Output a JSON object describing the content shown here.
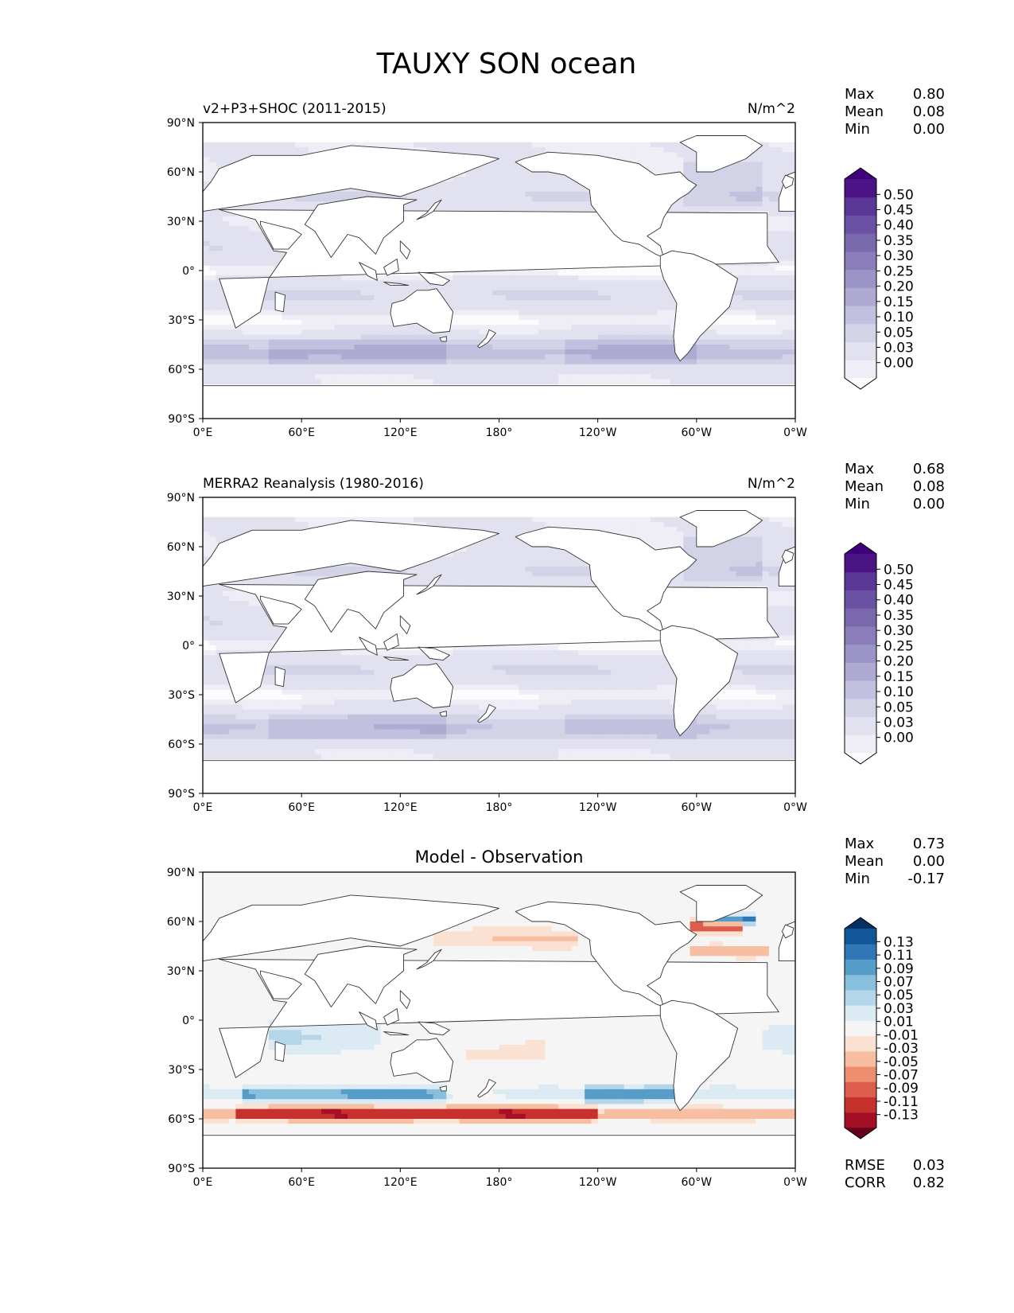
{
  "title": "TAUXY SON ocean",
  "colors": {
    "purple_scale": [
      "#fcfbfd",
      "#efedf5",
      "#e2e1ef",
      "#d3d3e8",
      "#c1c1df",
      "#aeaad1",
      "#9b94c6",
      "#8a7db9",
      "#7a68ad",
      "#6a51a3",
      "#5b3798",
      "#4a1486",
      "#3f007d"
    ],
    "diff_scale": [
      "#67001f",
      "#a50f26",
      "#c6312e",
      "#dc5d4b",
      "#ee8e6f",
      "#f8bea1",
      "#fbe1d2",
      "#f5f5f5",
      "#dbeaf3",
      "#b5d6e9",
      "#88bfdc",
      "#569dc9",
      "#3078b5",
      "#12569a",
      "#053061"
    ]
  },
  "chart_data": [
    {
      "type": "heatmap",
      "title": "v2+P3+SHOC (2011-2015)",
      "units": "N/m^2",
      "stats": [
        {
          "label": "Max",
          "value": "0.80"
        },
        {
          "label": "Mean",
          "value": "0.08"
        },
        {
          "label": "Min",
          "value": "0.00"
        }
      ],
      "colorbar_ticks": [
        "0.50",
        "0.45",
        "0.40",
        "0.35",
        "0.30",
        "0.25",
        "0.20",
        "0.15",
        "0.10",
        "0.05",
        "0.03",
        "0.00"
      ],
      "xticks": [
        "0°E",
        "60°E",
        "120°E",
        "180°",
        "120°W",
        "60°W",
        "0°W"
      ],
      "yticks": [
        "90°N",
        "60°N",
        "30°N",
        "0°",
        "30°S",
        "60°S",
        "90°S"
      ],
      "xlim": [
        0,
        360
      ],
      "ylim": [
        -90,
        90
      ]
    },
    {
      "type": "heatmap",
      "title": "MERRA2 Reanalysis (1980-2016)",
      "units": "N/m^2",
      "stats": [
        {
          "label": "Max",
          "value": "0.68"
        },
        {
          "label": "Mean",
          "value": "0.08"
        },
        {
          "label": "Min",
          "value": "0.00"
        }
      ],
      "colorbar_ticks": [
        "0.50",
        "0.45",
        "0.40",
        "0.35",
        "0.30",
        "0.25",
        "0.20",
        "0.15",
        "0.10",
        "0.05",
        "0.03",
        "0.00"
      ],
      "xticks": [
        "0°E",
        "60°E",
        "120°E",
        "180°",
        "120°W",
        "60°W",
        "0°W"
      ],
      "yticks": [
        "90°N",
        "60°N",
        "30°N",
        "0°",
        "30°S",
        "60°S",
        "90°S"
      ],
      "xlim": [
        0,
        360
      ],
      "ylim": [
        -90,
        90
      ]
    },
    {
      "type": "heatmap",
      "title": "Model - Observation",
      "units": "",
      "stats": [
        {
          "label": "Max",
          "value": "0.73"
        },
        {
          "label": "Mean",
          "value": "0.00"
        },
        {
          "label": "Min",
          "value": "-0.17"
        }
      ],
      "colorbar_ticks": [
        "0.13",
        "0.11",
        "0.09",
        "0.07",
        "0.05",
        "0.03",
        "0.01",
        "-0.01",
        "-0.03",
        "-0.05",
        "-0.07",
        "-0.09",
        "-0.11",
        "-0.13"
      ],
      "xticks": [
        "0°E",
        "60°E",
        "120°E",
        "180°",
        "120°W",
        "60°W",
        "0°W"
      ],
      "yticks": [
        "90°N",
        "60°N",
        "30°N",
        "0°",
        "30°S",
        "60°S",
        "90°S"
      ],
      "xlim": [
        0,
        360
      ],
      "ylim": [
        -90,
        90
      ],
      "metrics": [
        {
          "label": "RMSE",
          "value": "0.03"
        },
        {
          "label": "CORR",
          "value": "0.82"
        }
      ]
    }
  ]
}
